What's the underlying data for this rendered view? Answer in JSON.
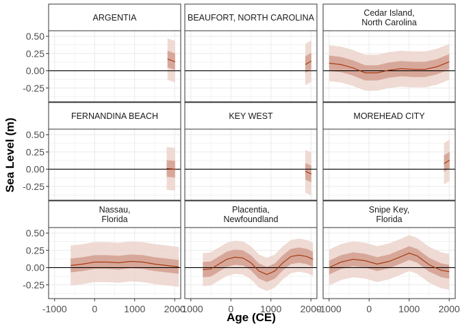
{
  "chart_data": {
    "type": "area",
    "xlabel": "Age (CE)",
    "ylabel": "Sea Level (m)",
    "xlim": [
      -1150,
      2150
    ],
    "ylim": [
      -0.45,
      0.58
    ],
    "x_ticks": [
      -1000,
      0,
      1000,
      2000
    ],
    "x_tick_labels": [
      "-1000",
      "0",
      "1000",
      "2000"
    ],
    "y_ticks": [
      -0.25,
      0,
      0.25,
      0.5
    ],
    "y_tick_labels": [
      "-0.25",
      "0.00",
      "0.25",
      "0.50"
    ],
    "grid": true,
    "reference_line_y": 0,
    "colors": {
      "line": "#a63a12",
      "inner_band": "#d4a293",
      "outer_band": "#ecd4cc",
      "zero_line": "#000000",
      "grid": "#ebebeb",
      "panel_border": "#333333"
    },
    "panels": [
      {
        "title": [
          "ARGENTIA"
        ],
        "x": [
          1820,
          2010
        ],
        "y": [
          0.17,
          0.13
        ],
        "inner_half_width": 0.12,
        "outer_half_width": 0.3
      },
      {
        "title": [
          "BEAUFORT, NORTH CAROLINA"
        ],
        "x": [
          1860,
          2010
        ],
        "y": [
          0.09,
          0.14
        ],
        "inner_half_width": 0.12,
        "outer_half_width": 0.3
      },
      {
        "title": [
          "Cedar Island,",
          "North Carolina"
        ],
        "x": [
          -1000,
          -700,
          -400,
          -100,
          200,
          500,
          800,
          1100,
          1400,
          1700,
          2000
        ],
        "y": [
          0.11,
          0.09,
          0.04,
          -0.03,
          -0.03,
          0.01,
          0.03,
          0.02,
          0.02,
          0.06,
          0.13
        ],
        "inner_half_width": 0.11,
        "outer_half_width": 0.26
      },
      {
        "title": [
          "FERNANDINA BEACH"
        ],
        "x": [
          1800,
          2010
        ],
        "y": [
          0.01,
          0.0
        ],
        "inner_half_width": 0.12,
        "outer_half_width": 0.31
      },
      {
        "title": [
          "KEY WEST"
        ],
        "x": [
          1860,
          2010
        ],
        "y": [
          -0.03,
          -0.07
        ],
        "inner_half_width": 0.12,
        "outer_half_width": 0.31
      },
      {
        "title": [
          "MOREHEAD CITY"
        ],
        "x": [
          1870,
          2010
        ],
        "y": [
          0.08,
          0.13
        ],
        "inner_half_width": 0.12,
        "outer_half_width": 0.3
      },
      {
        "title": [
          "Nassau,",
          "Florida"
        ],
        "x": [
          -600,
          -300,
          0,
          300,
          600,
          900,
          1200,
          1500,
          1800,
          2100
        ],
        "y": [
          0.03,
          0.05,
          0.08,
          0.08,
          0.07,
          0.09,
          0.08,
          0.05,
          0.03,
          0.01
        ],
        "inner_half_width": 0.1,
        "outer_half_width": 0.29
      },
      {
        "title": [
          "Placentia,",
          "Newfoundland"
        ],
        "x": [
          -700,
          -500,
          -300,
          -100,
          100,
          300,
          500,
          700,
          900,
          1100,
          1300,
          1500,
          1700,
          1900,
          2050
        ],
        "y": [
          -0.03,
          -0.02,
          0.05,
          0.12,
          0.15,
          0.14,
          0.07,
          -0.05,
          -0.1,
          -0.05,
          0.07,
          0.16,
          0.18,
          0.16,
          0.12
        ],
        "inner_half_width": 0.11,
        "outer_half_width": 0.24
      },
      {
        "title": [
          "Snipe Key,",
          "Florida"
        ],
        "x": [
          -1000,
          -700,
          -400,
          -100,
          200,
          500,
          800,
          1000,
          1200,
          1500,
          1800,
          2000
        ],
        "y": [
          0.0,
          0.08,
          0.12,
          0.1,
          0.05,
          0.09,
          0.16,
          0.21,
          0.17,
          0.04,
          -0.04,
          -0.06
        ],
        "inner_half_width": 0.1,
        "outer_half_width": 0.26
      }
    ]
  }
}
